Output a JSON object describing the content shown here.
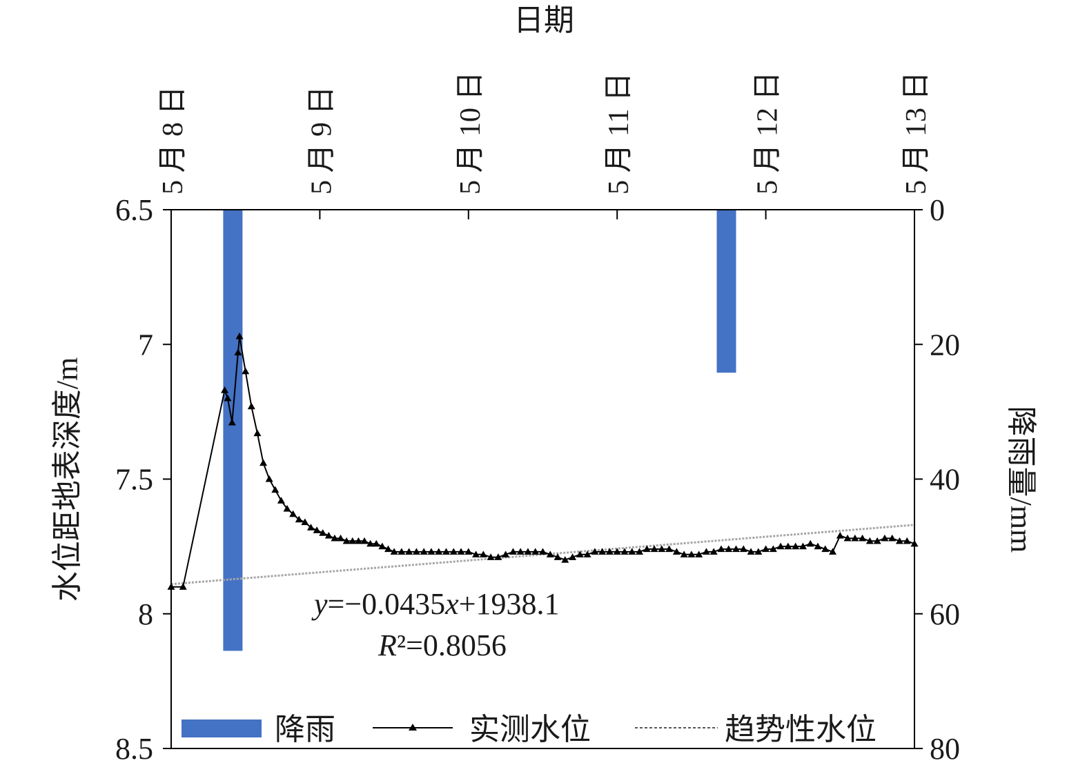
{
  "chart_data": {
    "type": "line",
    "x_axis": {
      "title": "日期",
      "position": "top",
      "ticks": [
        "5 月 8 日",
        "5 月 9 日",
        "5 月 10 日",
        "5 月 11 日",
        "5 月 12 日",
        "5 月 13 日"
      ],
      "range_days": [
        0,
        5
      ]
    },
    "y_left": {
      "title": "水位距地表深度/m",
      "ticks": [
        "6.5",
        "7",
        "7.5",
        "8",
        "8.5"
      ],
      "ylim": [
        6.5,
        8.5
      ],
      "inverted": true
    },
    "y_right": {
      "title": "降雨量/mm",
      "ticks": [
        "0",
        "20",
        "40",
        "60",
        "80"
      ],
      "ylim": [
        0,
        80
      ],
      "inverted": true
    },
    "rain": {
      "name": "降雨",
      "color": "#4472c4",
      "bars": [
        {
          "start_day": 0.35,
          "end_day": 0.48,
          "value": 65.5
        },
        {
          "start_day": 3.67,
          "end_day": 3.8,
          "value": 24.2
        }
      ]
    },
    "measured": {
      "name": "实测水位",
      "color": "#000000",
      "points": [
        [
          0.0,
          7.9
        ],
        [
          0.08,
          7.9
        ],
        [
          0.36,
          7.17
        ],
        [
          0.38,
          7.2
        ],
        [
          0.41,
          7.29
        ],
        [
          0.45,
          7.03
        ],
        [
          0.46,
          6.97
        ],
        [
          0.5,
          7.1
        ],
        [
          0.54,
          7.23
        ],
        [
          0.58,
          7.33
        ],
        [
          0.62,
          7.44
        ],
        [
          0.66,
          7.5
        ],
        [
          0.7,
          7.54
        ],
        [
          0.74,
          7.58
        ],
        [
          0.78,
          7.61
        ],
        [
          0.82,
          7.63
        ],
        [
          0.86,
          7.65
        ],
        [
          0.9,
          7.66
        ],
        [
          0.94,
          7.68
        ],
        [
          0.98,
          7.69
        ],
        [
          1.02,
          7.7
        ],
        [
          1.06,
          7.71
        ],
        [
          1.1,
          7.72
        ],
        [
          1.14,
          7.72
        ],
        [
          1.18,
          7.73
        ],
        [
          1.22,
          7.73
        ],
        [
          1.26,
          7.73
        ],
        [
          1.3,
          7.73
        ],
        [
          1.34,
          7.74
        ],
        [
          1.38,
          7.74
        ],
        [
          1.42,
          7.75
        ],
        [
          1.46,
          7.76
        ],
        [
          1.5,
          7.77
        ],
        [
          1.55,
          7.77
        ],
        [
          1.6,
          7.77
        ],
        [
          1.65,
          7.77
        ],
        [
          1.7,
          7.77
        ],
        [
          1.75,
          7.77
        ],
        [
          1.8,
          7.77
        ],
        [
          1.85,
          7.77
        ],
        [
          1.9,
          7.77
        ],
        [
          1.95,
          7.77
        ],
        [
          2.0,
          7.77
        ],
        [
          2.05,
          7.78
        ],
        [
          2.1,
          7.78
        ],
        [
          2.15,
          7.79
        ],
        [
          2.2,
          7.79
        ],
        [
          2.25,
          7.78
        ],
        [
          2.3,
          7.77
        ],
        [
          2.35,
          7.77
        ],
        [
          2.4,
          7.77
        ],
        [
          2.45,
          7.77
        ],
        [
          2.5,
          7.77
        ],
        [
          2.55,
          7.78
        ],
        [
          2.6,
          7.79
        ],
        [
          2.65,
          7.8
        ],
        [
          2.7,
          7.79
        ],
        [
          2.75,
          7.78
        ],
        [
          2.8,
          7.78
        ],
        [
          2.85,
          7.77
        ],
        [
          2.9,
          7.77
        ],
        [
          2.95,
          7.77
        ],
        [
          3.0,
          7.77
        ],
        [
          3.05,
          7.77
        ],
        [
          3.1,
          7.77
        ],
        [
          3.15,
          7.77
        ],
        [
          3.2,
          7.76
        ],
        [
          3.25,
          7.76
        ],
        [
          3.3,
          7.76
        ],
        [
          3.35,
          7.76
        ],
        [
          3.4,
          7.77
        ],
        [
          3.45,
          7.78
        ],
        [
          3.5,
          7.78
        ],
        [
          3.55,
          7.78
        ],
        [
          3.6,
          7.77
        ],
        [
          3.65,
          7.77
        ],
        [
          3.7,
          7.76
        ],
        [
          3.75,
          7.76
        ],
        [
          3.8,
          7.76
        ],
        [
          3.85,
          7.76
        ],
        [
          3.9,
          7.77
        ],
        [
          3.95,
          7.77
        ],
        [
          4.0,
          7.76
        ],
        [
          4.05,
          7.76
        ],
        [
          4.1,
          7.75
        ],
        [
          4.15,
          7.75
        ],
        [
          4.2,
          7.75
        ],
        [
          4.25,
          7.75
        ],
        [
          4.3,
          7.74
        ],
        [
          4.35,
          7.75
        ],
        [
          4.4,
          7.76
        ],
        [
          4.45,
          7.77
        ],
        [
          4.5,
          7.71
        ],
        [
          4.55,
          7.72
        ],
        [
          4.6,
          7.72
        ],
        [
          4.65,
          7.72
        ],
        [
          4.7,
          7.73
        ],
        [
          4.75,
          7.73
        ],
        [
          4.8,
          7.72
        ],
        [
          4.85,
          7.72
        ],
        [
          4.9,
          7.73
        ],
        [
          4.95,
          7.73
        ],
        [
          5.0,
          7.74
        ]
      ]
    },
    "trend": {
      "name": "趋势性水位",
      "color": "#a6a6a6",
      "start": [
        0.0,
        7.89
      ],
      "end": [
        5.0,
        7.67
      ],
      "equation": {
        "y_var": "y",
        "y_rest": "=−0.0435",
        "x_var": "x",
        "x_rest": "+1938.1"
      },
      "r2": {
        "r_var": "R",
        "r_rest": "²=0.8056"
      }
    }
  }
}
